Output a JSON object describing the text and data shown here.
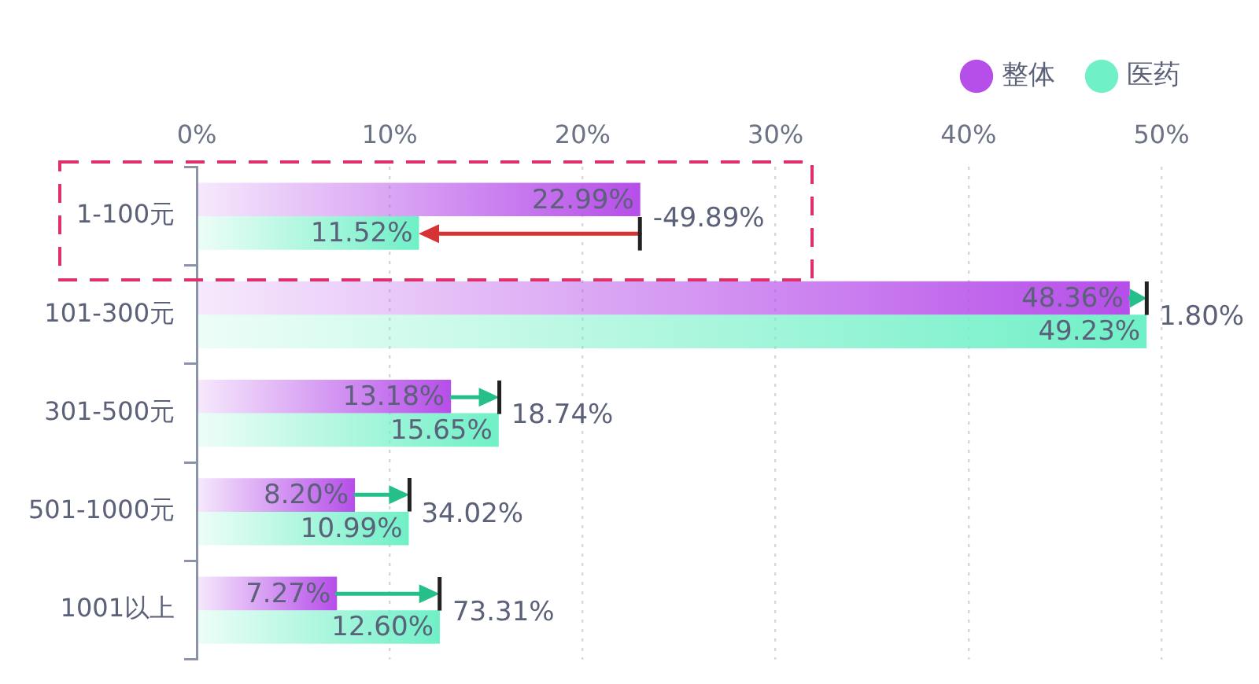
{
  "chart_data": {
    "type": "bar",
    "orientation": "horizontal",
    "categories": [
      "1-100元",
      "101-300元",
      "301-500元",
      "501-1000元",
      "1001以上"
    ],
    "series": [
      {
        "name": "整体",
        "color": "#b64ee9",
        "values": [
          22.99,
          48.36,
          13.18,
          8.2,
          7.27
        ],
        "value_labels": [
          "22.99%",
          "48.36%",
          "13.18%",
          "8.20%",
          "7.27%"
        ]
      },
      {
        "name": "医药",
        "color": "#6ff0c6",
        "values": [
          11.52,
          49.23,
          15.65,
          10.99,
          12.6
        ],
        "value_labels": [
          "11.52%",
          "49.23%",
          "15.65%",
          "10.99%",
          "12.60%"
        ]
      }
    ],
    "xlim": [
      0,
      50
    ],
    "xticks": [
      {
        "value": 0,
        "label": "0%"
      },
      {
        "value": 10,
        "label": "10%"
      },
      {
        "value": 20,
        "label": "20%"
      },
      {
        "value": 30,
        "label": "30%"
      },
      {
        "value": 40,
        "label": "40%"
      },
      {
        "value": 50,
        "label": "50%"
      }
    ],
    "grid": "x",
    "legend": "top right",
    "annotations": [
      {
        "text": "-49.89%",
        "x": 22.99,
        "y": "1-100元"
      },
      {
        "text": "1.80%",
        "x": 49.23,
        "y": "101-300元"
      },
      {
        "text": "18.74%",
        "x": 15.65,
        "y": "301-500元"
      },
      {
        "text": "34.02%",
        "x": 10.99,
        "y": "501-1000元"
      },
      {
        "text": "73.31%",
        "x": 12.6,
        "y": "1001以上"
      }
    ]
  }
}
